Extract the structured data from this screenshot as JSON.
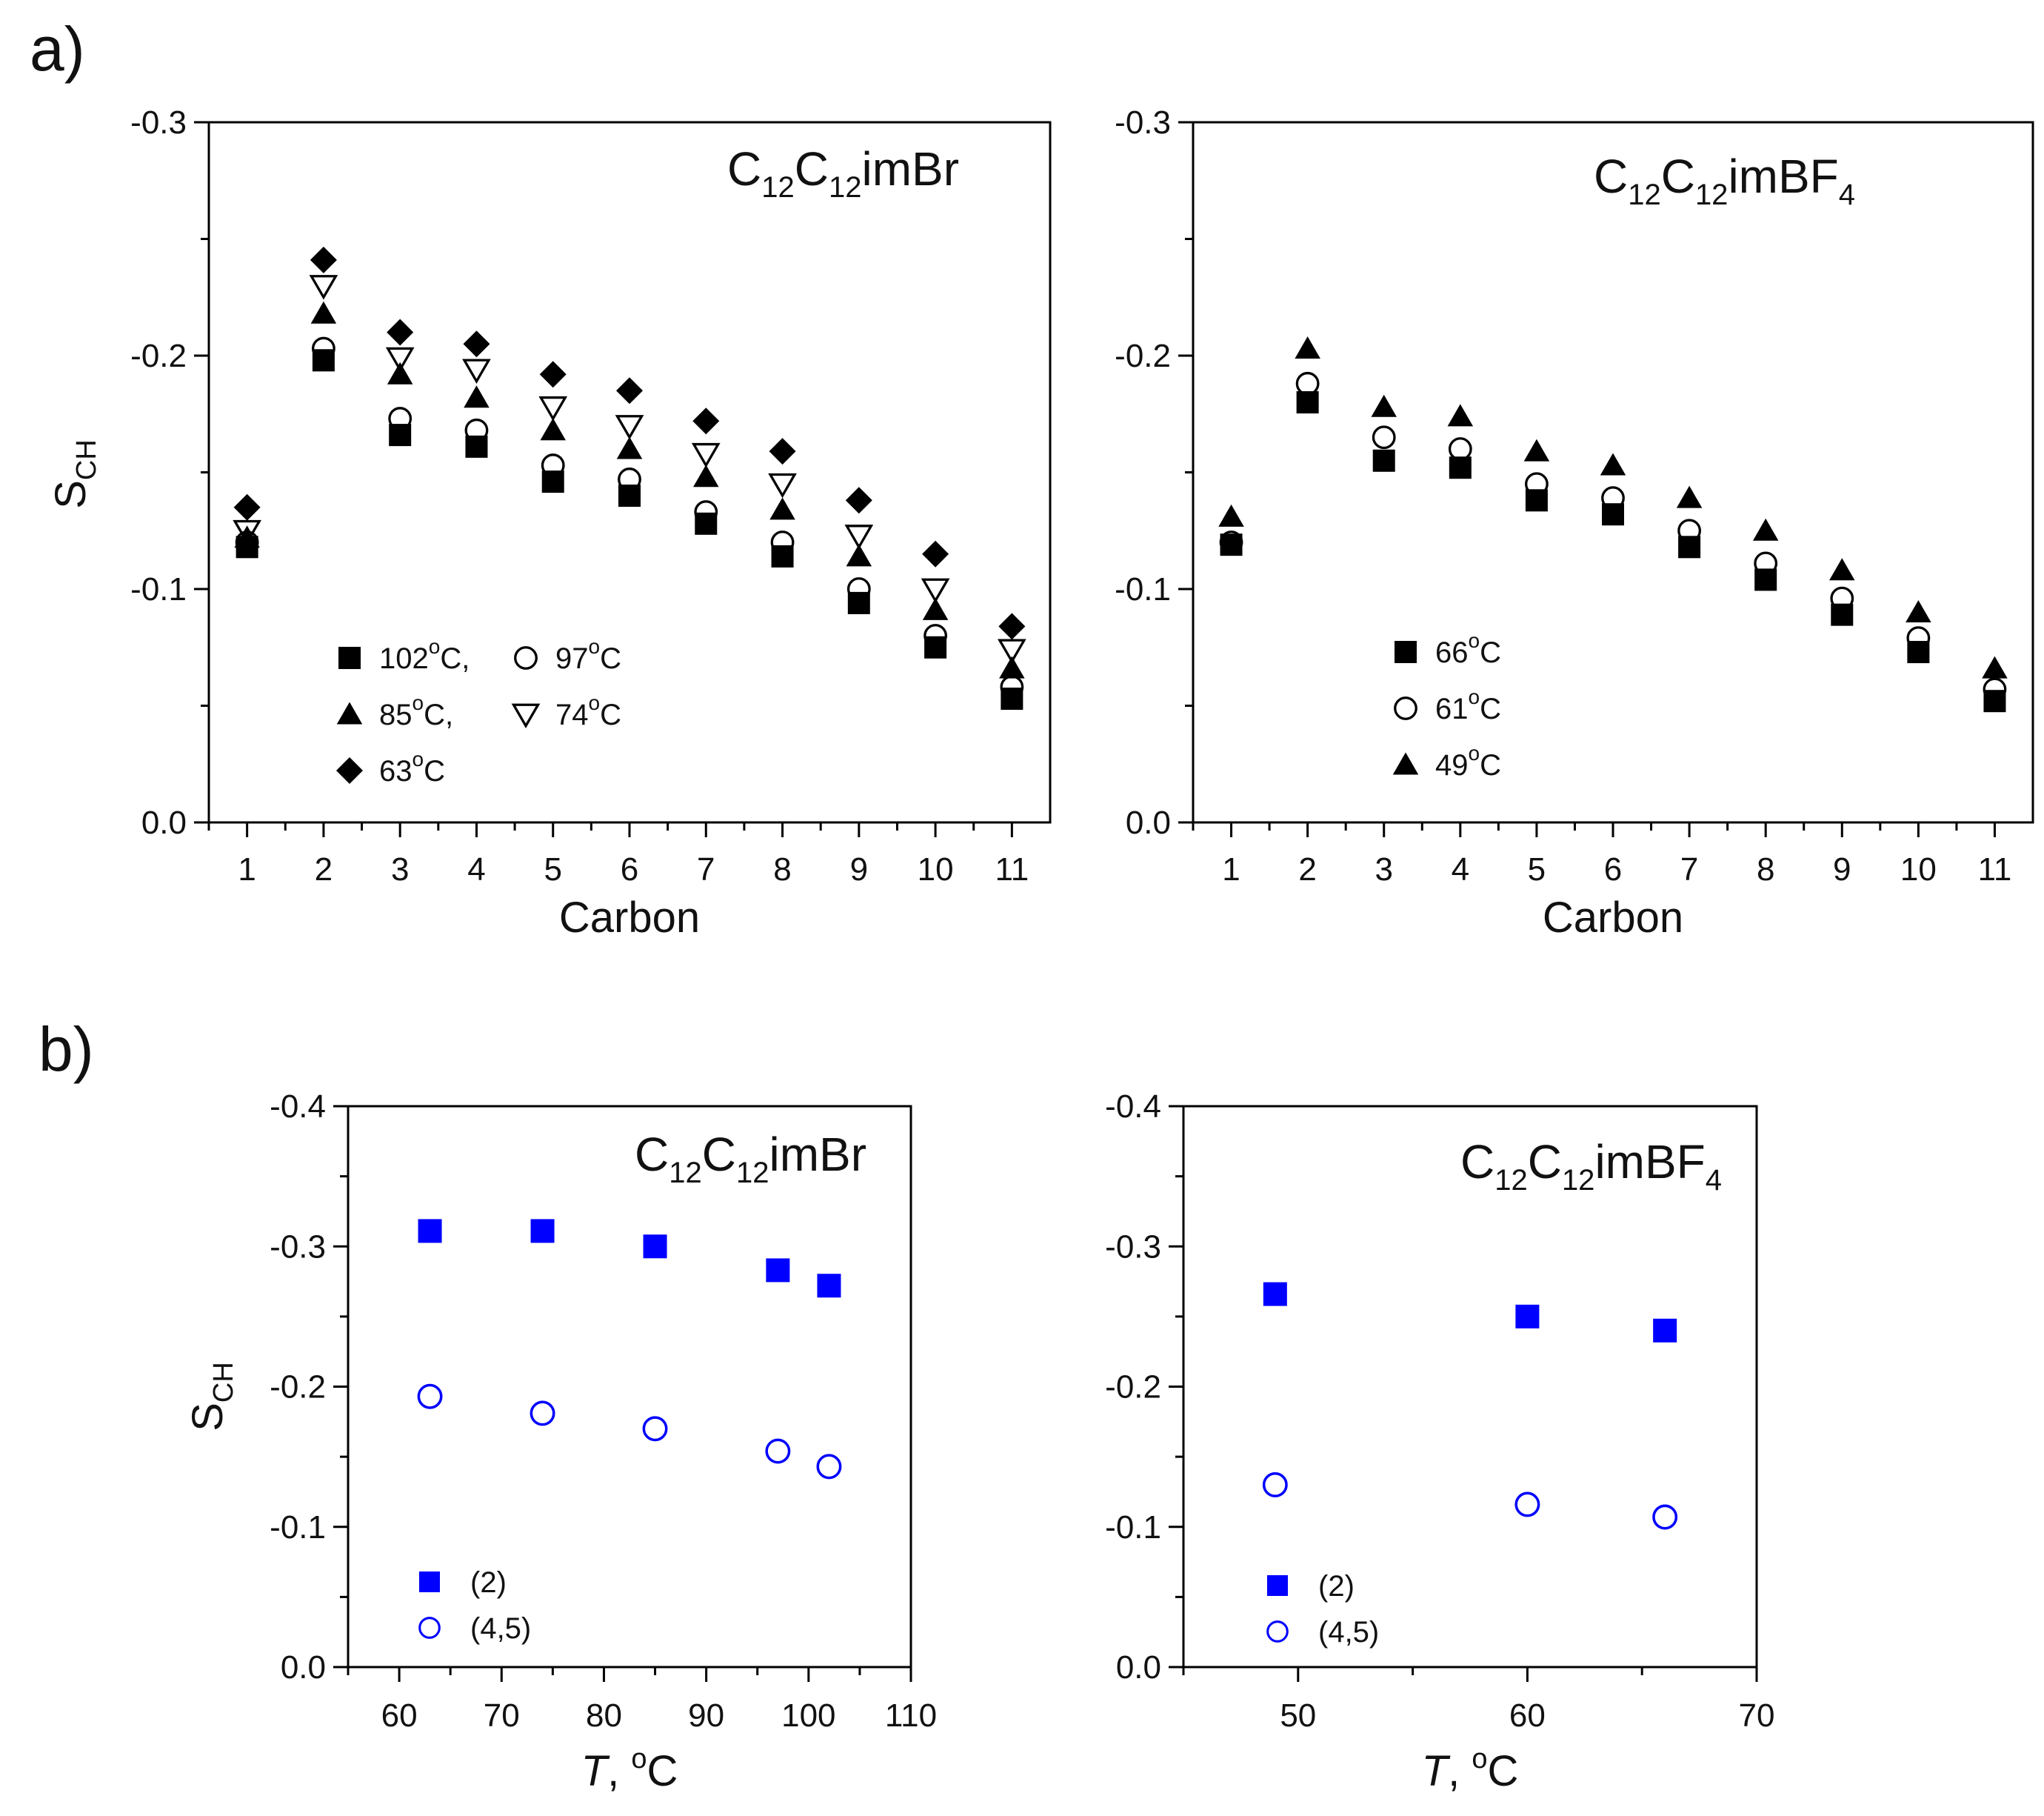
{
  "figure": {
    "panel_labels": {
      "a": "a)",
      "b": "b)"
    }
  },
  "chart_data": [
    {
      "type": "scatter",
      "panel": "a",
      "annotation": {
        "base": "C",
        "sub1": "12",
        "mid": "C",
        "sub2": "12",
        "tail": "imBr",
        "sub3": ""
      },
      "xlabel": "Carbon",
      "ylabel": "S",
      "ylabel_sub": "CH",
      "xlim": [
        0.5,
        11.5
      ],
      "ylim": [
        0.0,
        -0.3
      ],
      "xticks": [
        1,
        2,
        3,
        4,
        5,
        6,
        7,
        8,
        9,
        10,
        11
      ],
      "xtick_labels": [
        "1",
        "2",
        "3",
        "4",
        "5",
        "6",
        "7",
        "8",
        "9",
        "10",
        "11"
      ],
      "yticks": [
        0.0,
        -0.1,
        -0.2,
        -0.3
      ],
      "ytick_labels": [
        "0.0",
        "-0.1",
        "-0.2",
        "-0.3"
      ],
      "legend": "lower-left",
      "series": [
        {
          "name": "102oC",
          "label_num": "102",
          "label_sup": "o",
          "label_unit": "C,",
          "marker": "square-filled",
          "color": "#000000",
          "x": [
            1,
            2,
            3,
            4,
            5,
            6,
            7,
            8,
            9,
            10,
            11
          ],
          "y": [
            -0.118,
            -0.198,
            -0.166,
            -0.161,
            -0.146,
            -0.14,
            -0.128,
            -0.114,
            -0.094,
            -0.075,
            -0.053
          ]
        },
        {
          "name": "97oC",
          "label_num": "97",
          "label_sup": "o",
          "label_unit": "C",
          "marker": "circle-open",
          "color": "#000000",
          "x": [
            1,
            2,
            3,
            4,
            5,
            6,
            7,
            8,
            9,
            10,
            11
          ],
          "y": [
            -0.12,
            -0.203,
            -0.173,
            -0.168,
            -0.153,
            -0.147,
            -0.133,
            -0.12,
            -0.1,
            -0.08,
            -0.058
          ]
        },
        {
          "name": "85oC",
          "label_num": "85",
          "label_sup": "o",
          "label_unit": "C,",
          "marker": "triangle-up-filled",
          "color": "#000000",
          "x": [
            1,
            2,
            3,
            4,
            5,
            6,
            7,
            8,
            9,
            10,
            11
          ],
          "y": [
            -0.122,
            -0.218,
            -0.192,
            -0.182,
            -0.168,
            -0.16,
            -0.148,
            -0.134,
            -0.114,
            -0.091,
            -0.066
          ]
        },
        {
          "name": "74oC",
          "label_num": "74",
          "label_sup": "o",
          "label_unit": "C",
          "marker": "triangle-down-open",
          "color": "#000000",
          "x": [
            1,
            2,
            3,
            4,
            5,
            6,
            7,
            8,
            9,
            10,
            11
          ],
          "y": [
            -0.125,
            -0.23,
            -0.199,
            -0.194,
            -0.178,
            -0.17,
            -0.158,
            -0.145,
            -0.123,
            -0.1,
            -0.074
          ]
        },
        {
          "name": "63oC",
          "label_num": "63",
          "label_sup": "o",
          "label_unit": "C",
          "marker": "diamond-filled",
          "color": "#000000",
          "x": [
            1,
            2,
            3,
            4,
            5,
            6,
            7,
            8,
            9,
            10,
            11
          ],
          "y": [
            -0.135,
            -0.241,
            -0.21,
            -0.205,
            -0.192,
            -0.185,
            -0.172,
            -0.159,
            -0.138,
            -0.115,
            -0.084
          ]
        }
      ]
    },
    {
      "type": "scatter",
      "panel": "a",
      "annotation": {
        "base": "C",
        "sub1": "12",
        "mid": "C",
        "sub2": "12",
        "tail": "imBF",
        "sub3": "4"
      },
      "xlabel": "Carbon",
      "ylabel": "",
      "ylabel_sub": "",
      "xlim": [
        0.5,
        11.5
      ],
      "ylim": [
        0.0,
        -0.3
      ],
      "xticks": [
        1,
        2,
        3,
        4,
        5,
        6,
        7,
        8,
        9,
        10,
        11
      ],
      "xtick_labels": [
        "1",
        "2",
        "3",
        "4",
        "5",
        "6",
        "7",
        "8",
        "9",
        "10",
        "11"
      ],
      "yticks": [
        0.0,
        -0.1,
        -0.2,
        -0.3
      ],
      "ytick_labels": [
        "0.0",
        "-0.1",
        "-0.2",
        "-0.3"
      ],
      "legend": "lower-left",
      "series": [
        {
          "name": "66oC",
          "label_num": "66",
          "label_sup": "o",
          "label_unit": "C",
          "marker": "square-filled",
          "color": "#000000",
          "x": [
            1,
            2,
            3,
            4,
            5,
            6,
            7,
            8,
            9,
            10,
            11
          ],
          "y": [
            -0.119,
            -0.18,
            -0.155,
            -0.152,
            -0.138,
            -0.132,
            -0.118,
            -0.104,
            -0.089,
            -0.073,
            -0.052
          ]
        },
        {
          "name": "61oC",
          "label_num": "61",
          "label_sup": "o",
          "label_unit": "C",
          "marker": "circle-open",
          "color": "#000000",
          "x": [
            1,
            2,
            3,
            4,
            5,
            6,
            7,
            8,
            9,
            10,
            11
          ],
          "y": [
            -0.12,
            -0.188,
            -0.165,
            -0.16,
            -0.145,
            -0.139,
            -0.125,
            -0.111,
            -0.096,
            -0.079,
            -0.057
          ]
        },
        {
          "name": "49oC",
          "label_num": "49",
          "label_sup": "o",
          "label_unit": "C",
          "marker": "triangle-up-filled",
          "color": "#000000",
          "x": [
            1,
            2,
            3,
            4,
            5,
            6,
            7,
            8,
            9,
            10,
            11
          ],
          "y": [
            -0.131,
            -0.203,
            -0.178,
            -0.174,
            -0.159,
            -0.153,
            -0.139,
            -0.125,
            -0.108,
            -0.09,
            -0.066
          ]
        }
      ]
    },
    {
      "type": "scatter",
      "panel": "b",
      "annotation": {
        "base": "C",
        "sub1": "12",
        "mid": "C",
        "sub2": "12",
        "tail": "imBr",
        "sub3": ""
      },
      "xlabel": "T, oC",
      "xlabel_italic": "T",
      "xlabel_rest": ", ",
      "xlabel_sup": "o",
      "xlabel_unit": "C",
      "ylabel": "S",
      "ylabel_sub": "CH",
      "xlim": [
        55,
        110
      ],
      "ylim": [
        0.0,
        -0.4
      ],
      "xticks": [
        60,
        70,
        80,
        90,
        100,
        110
      ],
      "xtick_labels": [
        "60",
        "70",
        "80",
        "90",
        "100",
        "110"
      ],
      "yticks": [
        0.0,
        -0.1,
        -0.2,
        -0.3,
        -0.4
      ],
      "ytick_labels": [
        "0.0",
        "-0.1",
        "-0.2",
        "-0.3",
        "-0.4"
      ],
      "legend": "lower-left",
      "series": [
        {
          "name": "(2)",
          "label_num": "(2)",
          "label_sup": "",
          "label_unit": "",
          "marker": "square-filled",
          "color": "#0000ff",
          "x": [
            63,
            74,
            85,
            97,
            102
          ],
          "y": [
            -0.311,
            -0.311,
            -0.3,
            -0.283,
            -0.272
          ]
        },
        {
          "name": "(4,5)",
          "label_num": "(4,5)",
          "label_sup": "",
          "label_unit": "",
          "marker": "circle-open",
          "color": "#0000ff",
          "x": [
            63,
            74,
            85,
            97,
            102
          ],
          "y": [
            -0.193,
            -0.181,
            -0.17,
            -0.154,
            -0.143
          ]
        }
      ]
    },
    {
      "type": "scatter",
      "panel": "b",
      "annotation": {
        "base": "C",
        "sub1": "12",
        "mid": "C",
        "sub2": "12",
        "tail": "imBF",
        "sub3": "4"
      },
      "xlabel": "T, oC",
      "xlabel_italic": "T",
      "xlabel_rest": ", ",
      "xlabel_sup": "o",
      "xlabel_unit": "C",
      "ylabel": "",
      "ylabel_sub": "",
      "xlim": [
        45,
        70
      ],
      "ylim": [
        0.0,
        -0.4
      ],
      "xticks": [
        50,
        60,
        70
      ],
      "xtick_labels": [
        "50",
        "60",
        "70"
      ],
      "yticks": [
        0.0,
        -0.1,
        -0.2,
        -0.3,
        -0.4
      ],
      "ytick_labels": [
        "0.0",
        "-0.1",
        "-0.2",
        "-0.3",
        "-0.4"
      ],
      "legend": "lower-left",
      "series": [
        {
          "name": "(2)",
          "label_num": "(2)",
          "label_sup": "",
          "label_unit": "",
          "marker": "square-filled",
          "color": "#0000ff",
          "x": [
            49,
            60,
            66
          ],
          "y": [
            -0.266,
            -0.25,
            -0.24
          ]
        },
        {
          "name": "(4,5)",
          "label_num": "(4,5)",
          "label_sup": "",
          "label_unit": "",
          "marker": "circle-open",
          "color": "#0000ff",
          "x": [
            49,
            60,
            66
          ],
          "y": [
            -0.13,
            -0.116,
            -0.107
          ]
        }
      ]
    }
  ]
}
